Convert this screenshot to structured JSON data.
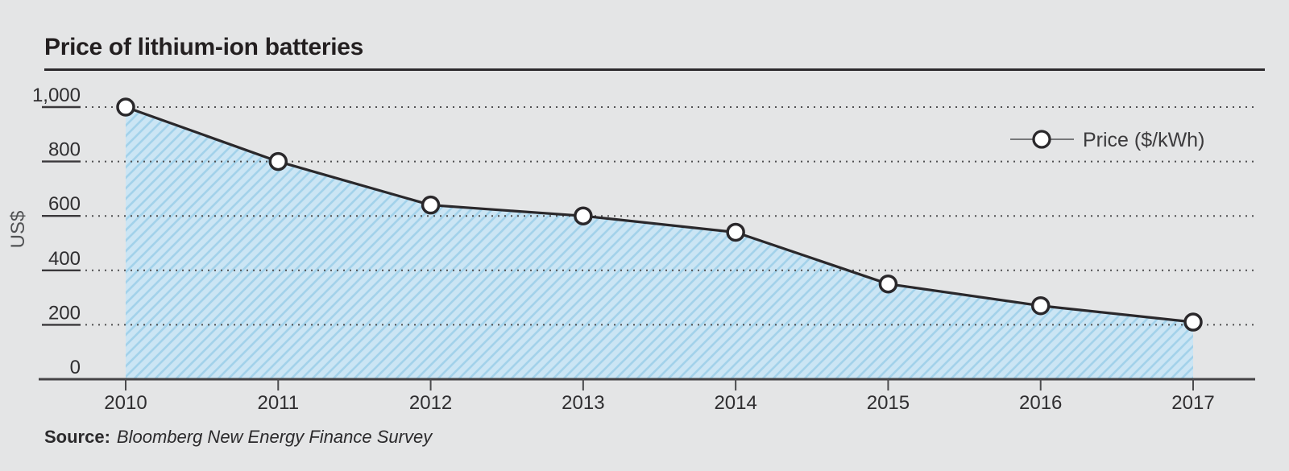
{
  "page": {
    "title": "Price of lithium-ion batteries",
    "source_label": "Source:",
    "source_text": "Bloomberg New Energy Finance Survey"
  },
  "chart_data": {
    "type": "area",
    "title": "Price of lithium-ion batteries",
    "categories": [
      "2010",
      "2011",
      "2012",
      "2013",
      "2014",
      "2015",
      "2016",
      "2017"
    ],
    "series": [
      {
        "name": "Price ($/kWh)",
        "values": [
          1000,
          800,
          640,
          600,
          540,
          350,
          270,
          210
        ]
      }
    ],
    "xlabel": "",
    "ylabel": "US$",
    "ylim": [
      0,
      1000
    ],
    "yticks": [
      0,
      200,
      400,
      600,
      800,
      1000
    ],
    "ytick_labels": [
      "0",
      "200",
      "400",
      "600",
      "800",
      "1,000"
    ],
    "grid": "dotted-horizontal",
    "legend": {
      "label": "Price ($/kWh)",
      "position": "top-right"
    },
    "area_style": "diagonal-hatch"
  },
  "colors": {
    "background": "#e4e5e6",
    "area_fill": "#cbe5f4",
    "hatch_line": "#a3d2ea",
    "series_line": "#2a282b",
    "marker_fill": "#ffffff",
    "marker_stroke": "#2a282b",
    "grid_dot": "#505052",
    "underline": "#3a383b",
    "axis": "#454346",
    "tick": "#4b4b4d",
    "tick_label": "#2f2e30",
    "axis_title": "#515254",
    "legend_line": "#77787a",
    "legend_text": "#3c3b3d",
    "title_text": "#231f20",
    "rule": "#2b292c",
    "source_text": "#2b2a2c"
  }
}
